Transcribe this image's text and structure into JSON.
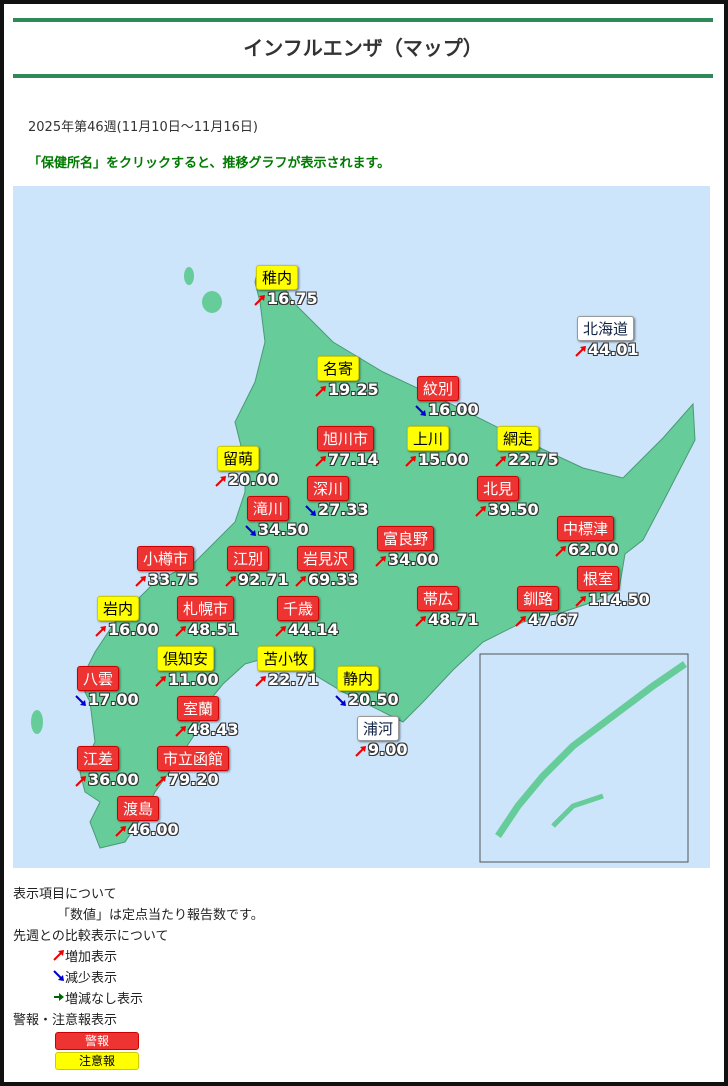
{
  "header": {
    "title": "インフルエンザ（マップ）"
  },
  "period": "2025年第46週(11月10日～11月16日)",
  "instruction": "「保健所名」をクリックすると、推移グラフが表示されます。",
  "regions": [
    {
      "name": "稚内",
      "value": "16.75",
      "trend": "up",
      "level": "caution"
    },
    {
      "name": "北海道",
      "value": "44.01",
      "trend": "up",
      "level": "none"
    },
    {
      "name": "名寄",
      "value": "19.25",
      "trend": "up",
      "level": "caution"
    },
    {
      "name": "紋別",
      "value": "16.00",
      "trend": "down",
      "level": "warning"
    },
    {
      "name": "旭川市",
      "value": "77.14",
      "trend": "up",
      "level": "warning"
    },
    {
      "name": "上川",
      "value": "15.00",
      "trend": "up",
      "level": "caution"
    },
    {
      "name": "網走",
      "value": "22.75",
      "trend": "up",
      "level": "caution"
    },
    {
      "name": "留萌",
      "value": "20.00",
      "trend": "up",
      "level": "caution"
    },
    {
      "name": "深川",
      "value": "27.33",
      "trend": "down",
      "level": "warning"
    },
    {
      "name": "北見",
      "value": "39.50",
      "trend": "up",
      "level": "warning"
    },
    {
      "name": "滝川",
      "value": "34.50",
      "trend": "down",
      "level": "warning"
    },
    {
      "name": "中標津",
      "value": "62.00",
      "trend": "up",
      "level": "warning"
    },
    {
      "name": "富良野",
      "value": "34.00",
      "trend": "up",
      "level": "warning"
    },
    {
      "name": "小樽市",
      "value": "33.75",
      "trend": "up",
      "level": "warning"
    },
    {
      "name": "江別",
      "value": "92.71",
      "trend": "up",
      "level": "warning"
    },
    {
      "name": "岩見沢",
      "value": "69.33",
      "trend": "up",
      "level": "warning"
    },
    {
      "name": "根室",
      "value": "114.50",
      "trend": "up",
      "level": "warning"
    },
    {
      "name": "帯広",
      "value": "48.71",
      "trend": "up",
      "level": "warning"
    },
    {
      "name": "釧路",
      "value": "47.67",
      "trend": "up",
      "level": "warning"
    },
    {
      "name": "岩内",
      "value": "16.00",
      "trend": "up",
      "level": "caution"
    },
    {
      "name": "札幌市",
      "value": "48.51",
      "trend": "up",
      "level": "warning"
    },
    {
      "name": "千歳",
      "value": "44.14",
      "trend": "up",
      "level": "warning"
    },
    {
      "name": "倶知安",
      "value": "11.00",
      "trend": "up",
      "level": "caution"
    },
    {
      "name": "苫小牧",
      "value": "22.71",
      "trend": "up",
      "level": "caution"
    },
    {
      "name": "八雲",
      "value": "17.00",
      "trend": "down",
      "level": "warning"
    },
    {
      "name": "静内",
      "value": "20.50",
      "trend": "down",
      "level": "caution"
    },
    {
      "name": "室蘭",
      "value": "48.43",
      "trend": "up",
      "level": "warning"
    },
    {
      "name": "浦河",
      "value": "9.00",
      "trend": "up",
      "level": "none"
    },
    {
      "name": "江差",
      "value": "36.00",
      "trend": "up",
      "level": "warning"
    },
    {
      "name": "市立函館",
      "value": "79.20",
      "trend": "up",
      "level": "warning"
    },
    {
      "name": "渡島",
      "value": "46.00",
      "trend": "up",
      "level": "warning"
    }
  ],
  "legend": {
    "display_heading": "表示項目について",
    "display_note": "「数値」は定点当たり報告数です。",
    "compare_heading": "先週との比較表示について",
    "increase": "増加表示",
    "decrease": "減少表示",
    "unchanged": "増減なし表示",
    "alert_heading": "警報・注意報表示",
    "warning": "警報",
    "caution": "注意報"
  }
}
